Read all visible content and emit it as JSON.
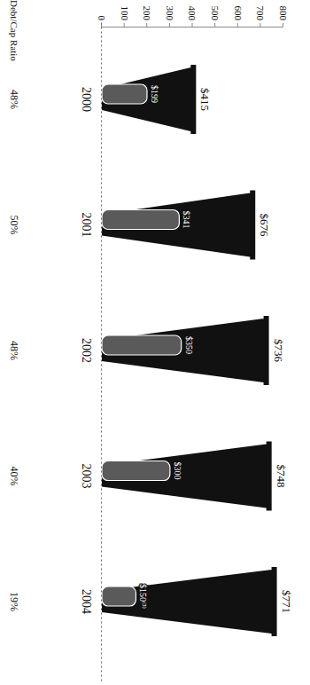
{
  "chart_data": {
    "type": "bar",
    "categories": [
      "2000",
      "2001",
      "2002",
      "2003",
      "2004"
    ],
    "series": [
      {
        "color": "#111111",
        "values": [
          415,
          676,
          736,
          748,
          771
        ],
        "value_labels": [
          "$415",
          "$676",
          "$736",
          "$748",
          "$771"
        ]
      },
      {
        "color": "#5a5a5a",
        "values": [
          199,
          341,
          350,
          300,
          150
        ],
        "value_labels": [
          "$199",
          "$341",
          "$350",
          "$300",
          "$150⁽³⁾"
        ]
      }
    ],
    "ylim": [
      0,
      800
    ],
    "yticks": [
      0,
      100,
      200,
      300,
      400,
      500,
      600,
      700,
      800
    ],
    "grid": false,
    "data_labels": true,
    "debt_cap_ratio": {
      "label": "Debt/Cap Ratio",
      "values": [
        48,
        50,
        48,
        40,
        19
      ],
      "value_labels": [
        "48%",
        "50%",
        "48%",
        "40%",
        "19%"
      ]
    }
  }
}
